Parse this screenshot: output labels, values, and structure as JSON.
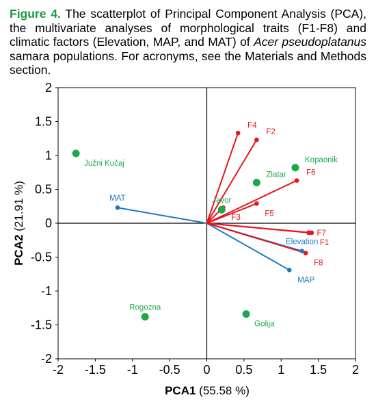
{
  "caption": {
    "figure_label": "Figure 4.",
    "text_before": " The scatterplot of Principal Component Analysis (PCA), the multivariate analyses of morphological traits (F1-F8) and climatic factors (Elevation, MAP, and MAT) of ",
    "species": "Acer pseudoplatanus",
    "text_after": " samara populations. For acronyms, see the Materials and Methods section."
  },
  "chart_data": {
    "type": "scatter",
    "xlabel": {
      "bold": "PCA1",
      "rest": " (55.58 %)"
    },
    "ylabel": {
      "bold": "PCA2",
      "rest": " (21.91 %)"
    },
    "xlim": [
      -2,
      2
    ],
    "ylim": [
      -2,
      2
    ],
    "xticks": [
      -2,
      -1.5,
      -1,
      -0.5,
      0,
      0.5,
      1,
      1.5,
      2
    ],
    "yticks": [
      -2,
      -1.5,
      -1,
      -0.5,
      0,
      0.5,
      1,
      1.5,
      2
    ],
    "grid": false,
    "colors": {
      "traits": "#e8141a",
      "climate": "#1f78c8",
      "populations": "#1fa84a"
    },
    "traits": [
      {
        "name": "F1",
        "x": 1.41,
        "y": -0.14,
        "label_pos": "below-right"
      },
      {
        "name": "F2",
        "x": 0.67,
        "y": 1.23,
        "label_pos": "above-right"
      },
      {
        "name": "F3",
        "x": 0.22,
        "y": 0.23,
        "label_pos": "below-right"
      },
      {
        "name": "F4",
        "x": 0.42,
        "y": 1.33,
        "label_pos": "above-right"
      },
      {
        "name": "F5",
        "x": 0.67,
        "y": 0.29,
        "label_pos": "below-right"
      },
      {
        "name": "F6",
        "x": 1.21,
        "y": 0.63,
        "label_pos": "above-right"
      },
      {
        "name": "F7",
        "x": 1.37,
        "y": -0.14,
        "label_pos": "right"
      },
      {
        "name": "F8",
        "x": 1.33,
        "y": -0.44,
        "label_pos": "below-right"
      }
    ],
    "climate": [
      {
        "name": "Elevation",
        "x": 1.28,
        "y": -0.41,
        "label_pos": "above"
      },
      {
        "name": "MAP",
        "x": 1.11,
        "y": -0.69,
        "label_pos": "below-right"
      },
      {
        "name": "MAT",
        "x": -1.2,
        "y": 0.23,
        "label_pos": "above"
      }
    ],
    "populations": [
      {
        "name": "Južni Kučaj",
        "x": -1.76,
        "y": 1.03,
        "label_pos": "below-right"
      },
      {
        "name": "Kopaonik",
        "x": 1.19,
        "y": 0.82,
        "label_pos": "above-right"
      },
      {
        "name": "Zlatar",
        "x": 0.67,
        "y": 0.6,
        "label_pos": "above-right"
      },
      {
        "name": "Javor",
        "x": 0.2,
        "y": 0.2,
        "label_pos": "above"
      },
      {
        "name": "Rogozna",
        "x": -0.83,
        "y": -1.38,
        "label_pos": "above"
      },
      {
        "name": "Golija",
        "x": 0.53,
        "y": -1.34,
        "label_pos": "below-right"
      }
    ]
  }
}
